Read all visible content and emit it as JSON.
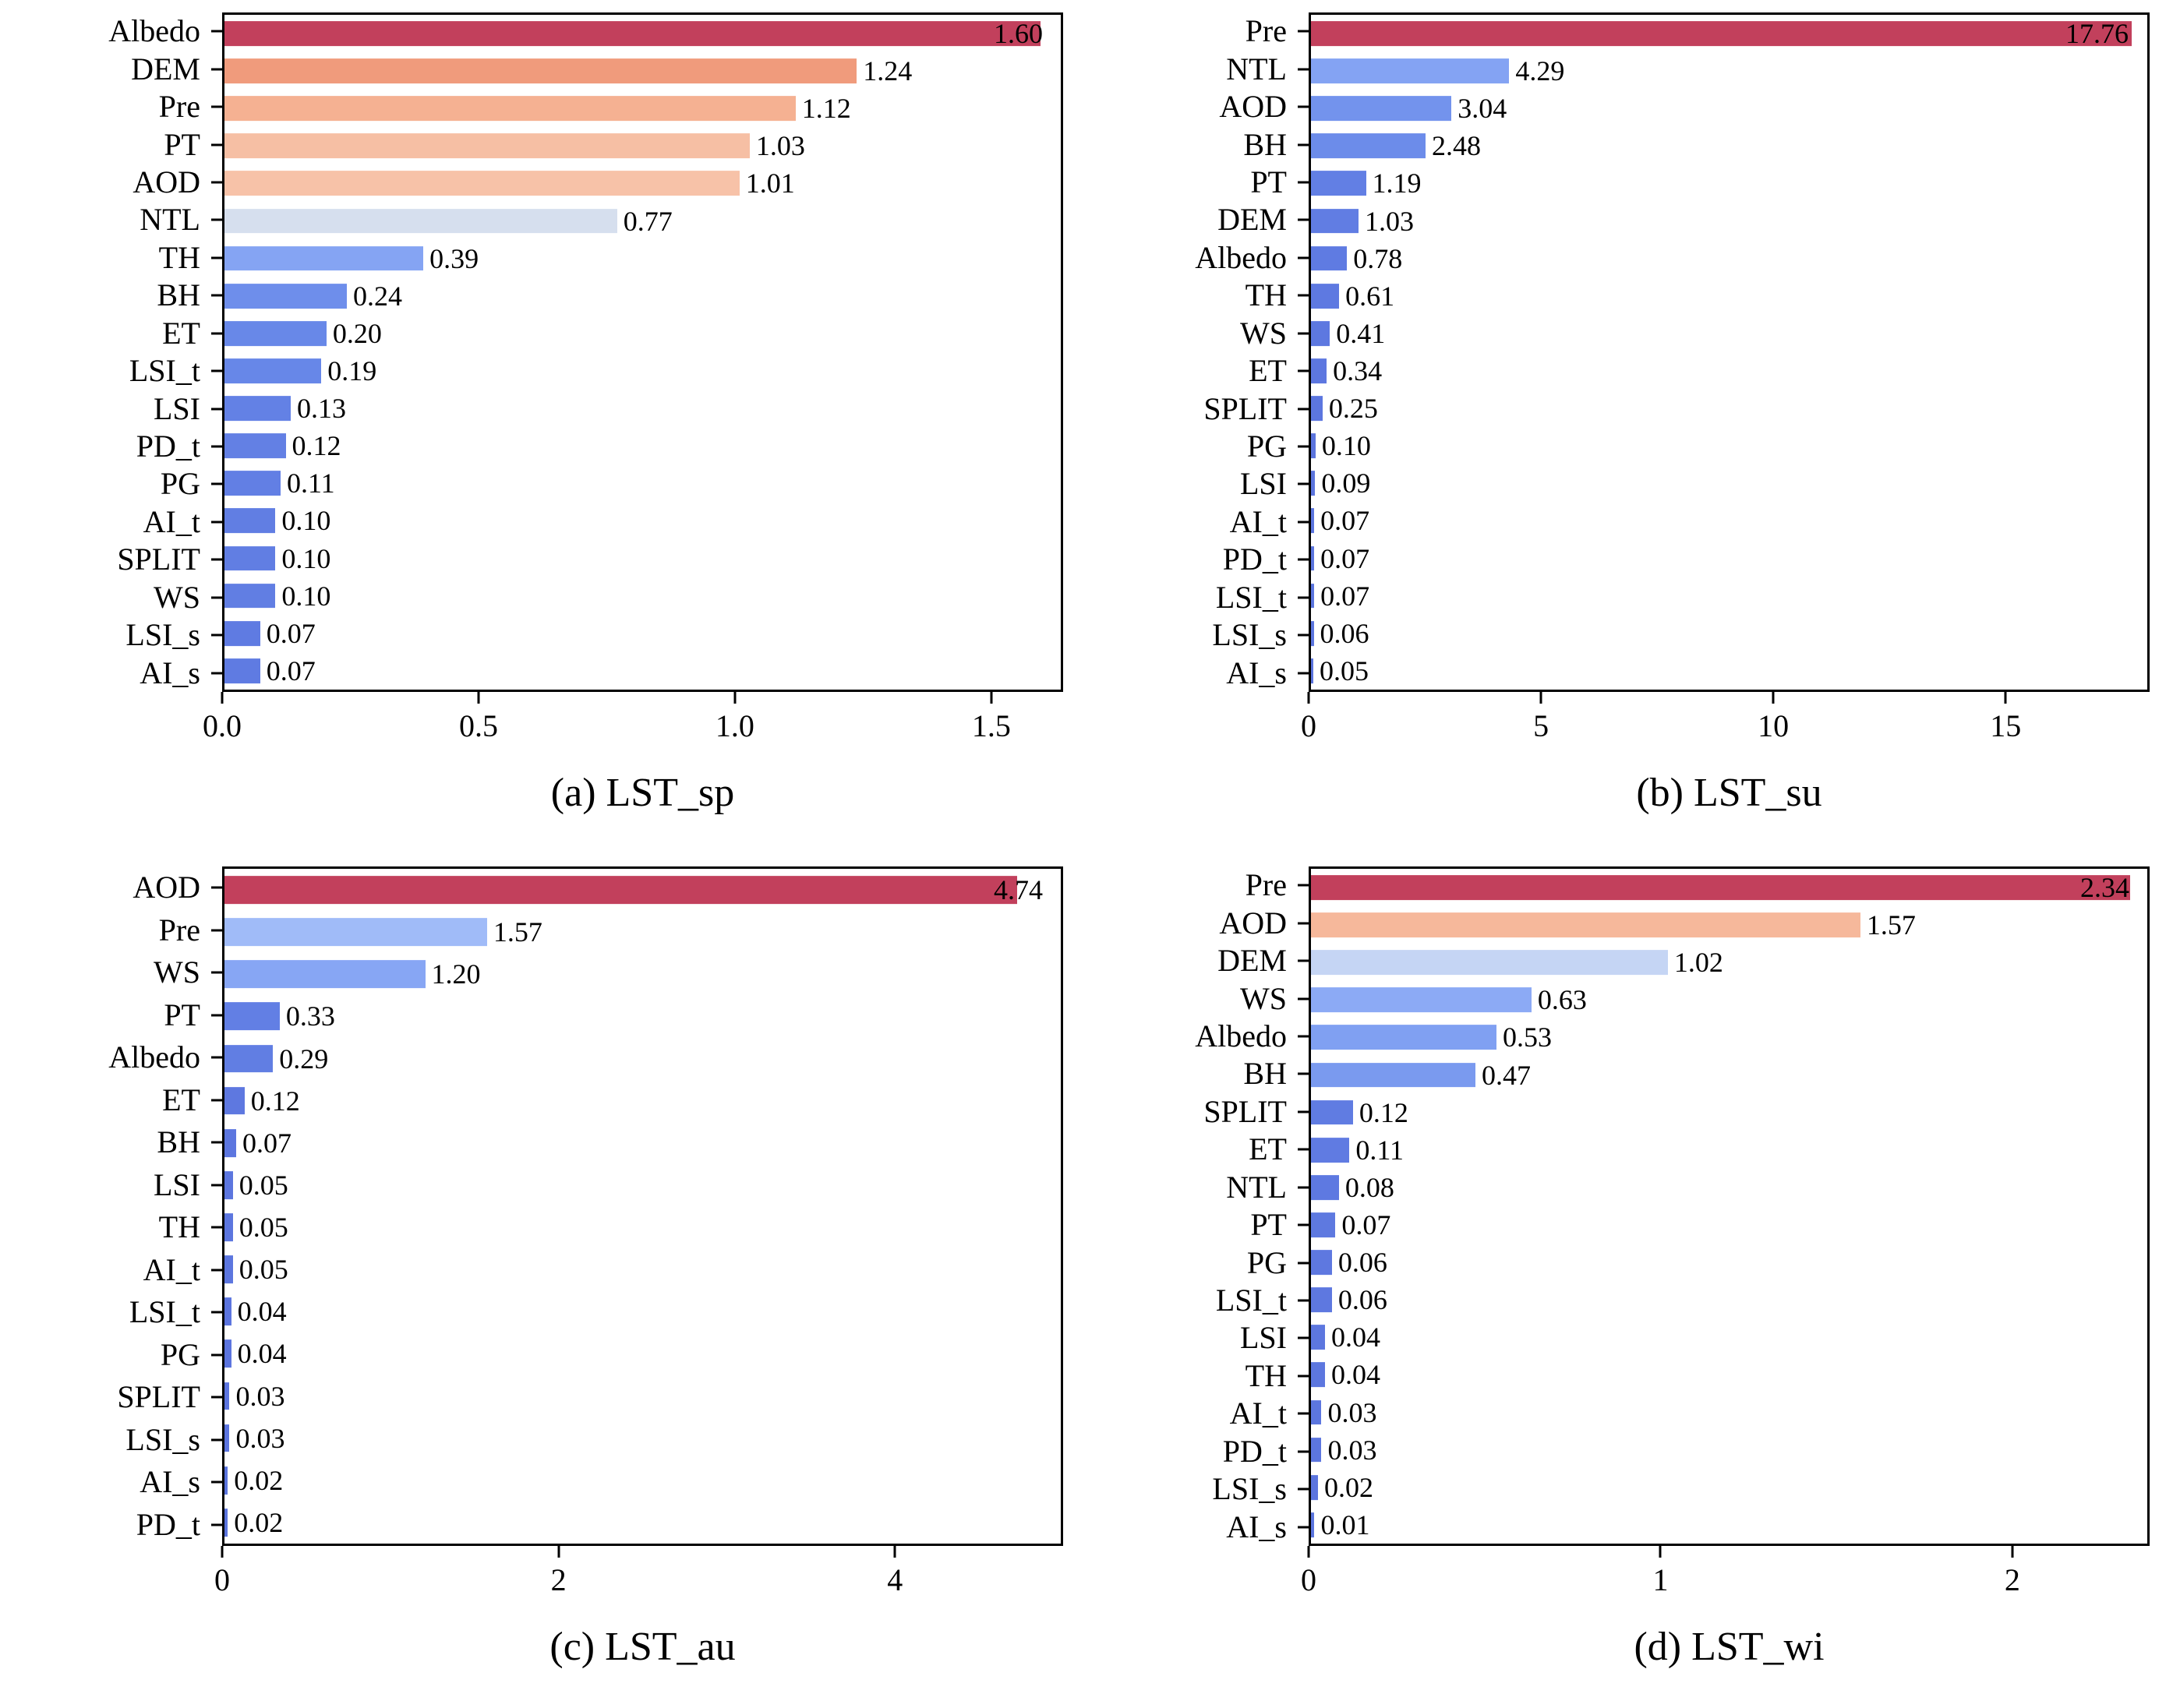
{
  "style": {
    "background": "#ffffff",
    "axis_color": "#000000",
    "text_color": "#000000",
    "palette": "coolwarm",
    "colormap_stops": [
      [
        0.0,
        "#5b74de"
      ],
      [
        0.12,
        "#6787e8"
      ],
      [
        0.25,
        "#86a5f4"
      ],
      [
        0.38,
        "#b0c9fb"
      ],
      [
        0.5,
        "#dde3ec"
      ],
      [
        0.62,
        "#f7c5ab"
      ],
      [
        0.75,
        "#f4a583"
      ],
      [
        0.88,
        "#e0705f"
      ],
      [
        1.0,
        "#c2405c"
      ]
    ]
  },
  "chart_data": [
    {
      "type": "bar",
      "orientation": "horizontal",
      "caption": "(a) LST_sp",
      "xlabel": "",
      "ylabel": "",
      "xlim": [
        0,
        1.64
      ],
      "grid": false,
      "legend": false,
      "xticks": [
        {
          "v": 0,
          "label": "0.0"
        },
        {
          "v": 0.5,
          "label": "0.5"
        },
        {
          "v": 1.0,
          "label": "1.0"
        },
        {
          "v": 1.5,
          "label": "1.5"
        }
      ],
      "categories": [
        "Albedo",
        "DEM",
        "Pre",
        "PT",
        "AOD",
        "NTL",
        "TH",
        "BH",
        "ET",
        "LSI_t",
        "LSI",
        "PD_t",
        "PG",
        "AI_t",
        "SPLIT",
        "WS",
        "LSI_s",
        "AI_s"
      ],
      "values": [
        1.6,
        1.24,
        1.12,
        1.03,
        1.01,
        0.77,
        0.39,
        0.24,
        0.2,
        0.19,
        0.13,
        0.12,
        0.11,
        0.1,
        0.1,
        0.1,
        0.07,
        0.07
      ],
      "value_labels": [
        "1.60",
        "1.24",
        "1.12",
        "1.03",
        "1.01",
        "0.77",
        "0.39",
        "0.24",
        "0.20",
        "0.19",
        "0.13",
        "0.12",
        "0.11",
        "0.10",
        "0.10",
        "0.10",
        "0.07",
        "0.07"
      ]
    },
    {
      "type": "bar",
      "orientation": "horizontal",
      "caption": "(b) LST_su",
      "xlabel": "",
      "ylabel": "",
      "xlim": [
        0,
        18.1
      ],
      "grid": false,
      "legend": false,
      "xticks": [
        {
          "v": 0,
          "label": "0"
        },
        {
          "v": 5,
          "label": "5"
        },
        {
          "v": 10,
          "label": "10"
        },
        {
          "v": 15,
          "label": "15"
        }
      ],
      "categories": [
        "Pre",
        "NTL",
        "AOD",
        "BH",
        "PT",
        "DEM",
        "Albedo",
        "TH",
        "WS",
        "ET",
        "SPLIT",
        "PG",
        "LSI",
        "AI_t",
        "PD_t",
        "LSI_t",
        "LSI_s",
        "AI_s"
      ],
      "values": [
        17.76,
        4.29,
        3.04,
        2.48,
        1.19,
        1.03,
        0.78,
        0.61,
        0.41,
        0.34,
        0.25,
        0.1,
        0.09,
        0.07,
        0.07,
        0.07,
        0.06,
        0.05
      ],
      "value_labels": [
        "17.76",
        "4.29",
        "3.04",
        "2.48",
        "1.19",
        "1.03",
        "0.78",
        "0.61",
        "0.41",
        "0.34",
        "0.25",
        "0.10",
        "0.09",
        "0.07",
        "0.07",
        "0.07",
        "0.06",
        "0.05"
      ]
    },
    {
      "type": "bar",
      "orientation": "horizontal",
      "caption": "(c) LST_au",
      "xlabel": "",
      "ylabel": "",
      "xlim": [
        0,
        5.0
      ],
      "grid": false,
      "legend": false,
      "xticks": [
        {
          "v": 0,
          "label": "0"
        },
        {
          "v": 2,
          "label": "2"
        },
        {
          "v": 4,
          "label": "4"
        }
      ],
      "categories": [
        "AOD",
        "Pre",
        "WS",
        "PT",
        "Albedo",
        "ET",
        "BH",
        "LSI",
        "TH",
        "AI_t",
        "LSI_t",
        "PG",
        "SPLIT",
        "LSI_s",
        "AI_s",
        "PD_t"
      ],
      "values": [
        4.74,
        1.57,
        1.2,
        0.33,
        0.29,
        0.12,
        0.07,
        0.05,
        0.05,
        0.05,
        0.04,
        0.04,
        0.03,
        0.03,
        0.02,
        0.02
      ],
      "value_labels": [
        "4.74",
        "1.57",
        "1.20",
        "0.33",
        "0.29",
        "0.12",
        "0.07",
        "0.05",
        "0.05",
        "0.05",
        "0.04",
        "0.04",
        "0.03",
        "0.03",
        "0.02",
        "0.02"
      ]
    },
    {
      "type": "bar",
      "orientation": "horizontal",
      "caption": "(d) LST_wi",
      "xlabel": "",
      "ylabel": "",
      "xlim": [
        0,
        2.39
      ],
      "grid": false,
      "legend": false,
      "xticks": [
        {
          "v": 0,
          "label": "0"
        },
        {
          "v": 1,
          "label": "1"
        },
        {
          "v": 2,
          "label": "2"
        }
      ],
      "categories": [
        "Pre",
        "AOD",
        "DEM",
        "WS",
        "Albedo",
        "BH",
        "SPLIT",
        "ET",
        "NTL",
        "PT",
        "PG",
        "LSI_t",
        "LSI",
        "TH",
        "AI_t",
        "PD_t",
        "LSI_s",
        "AI_s"
      ],
      "values": [
        2.34,
        1.57,
        1.02,
        0.63,
        0.53,
        0.47,
        0.12,
        0.11,
        0.08,
        0.07,
        0.06,
        0.06,
        0.04,
        0.04,
        0.03,
        0.03,
        0.02,
        0.01
      ],
      "value_labels": [
        "2.34",
        "1.57",
        "1.02",
        "0.63",
        "0.53",
        "0.47",
        "0.12",
        "0.11",
        "0.08",
        "0.07",
        "0.06",
        "0.06",
        "0.04",
        "0.04",
        "0.03",
        "0.03",
        "0.02",
        "0.01"
      ]
    }
  ]
}
